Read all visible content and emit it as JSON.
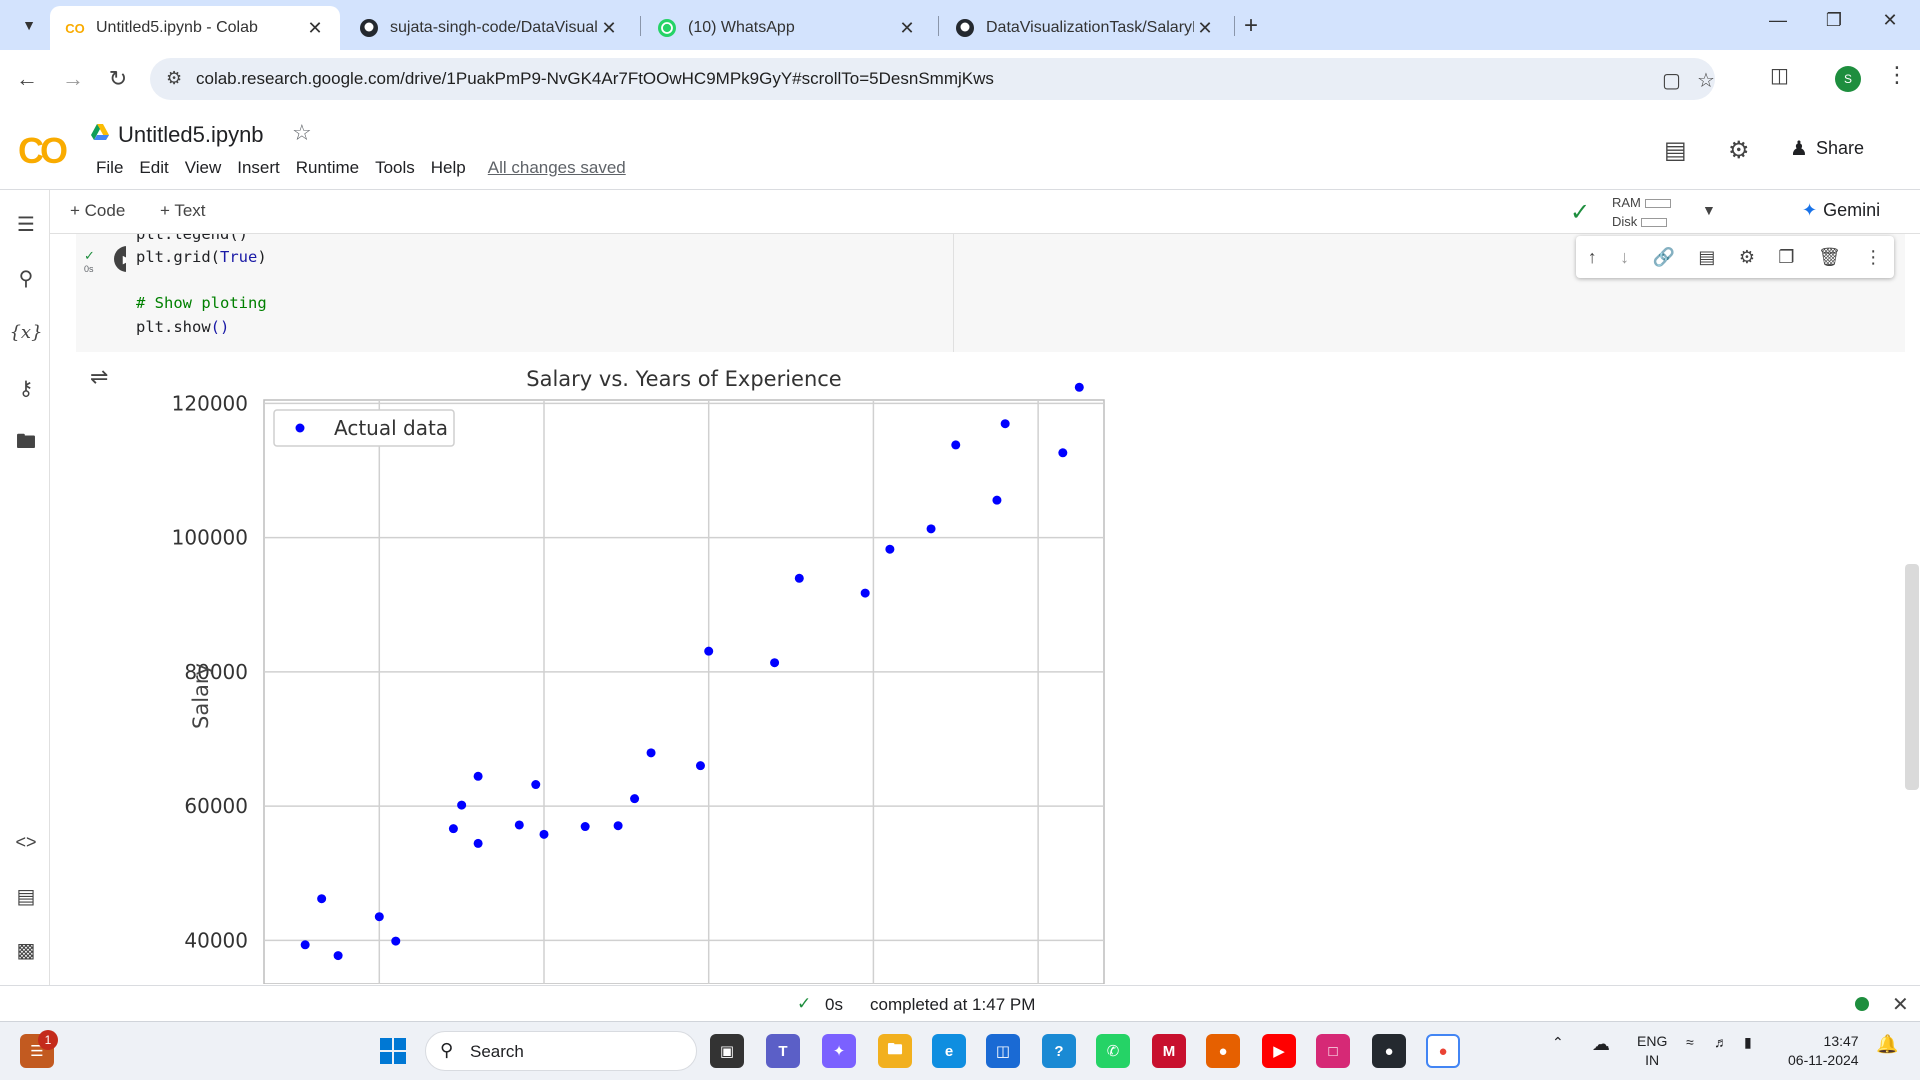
{
  "browser": {
    "tabs": [
      {
        "title": "Untitled5.ipynb - Colab",
        "icon": "colab-icon",
        "active": true
      },
      {
        "title": "sujata-singh-code/DataVisualiz",
        "icon": "github-icon",
        "active": false
      },
      {
        "title": "(10) WhatsApp",
        "icon": "whatsapp-icon",
        "active": false
      },
      {
        "title": "DataVisualizationTask/SalaryPre",
        "icon": "github-icon",
        "active": false
      }
    ],
    "url": "colab.research.google.com/drive/1PuakPmP9-NvGK4Ar7FtOOwHC9MPk9GyY#scrollTo=5DesnSmmjKws",
    "profile_initial": "S"
  },
  "colab": {
    "logo": "CO",
    "notebook_title": "Untitled5.ipynb",
    "menu": [
      "File",
      "Edit",
      "View",
      "Insert",
      "Runtime",
      "Tools",
      "Help"
    ],
    "save_status": "All changes saved",
    "share_label": "Share",
    "toolbar": {
      "add_code": "+ Code",
      "add_text": "+ Text",
      "ram": "RAM",
      "disk": "Disk",
      "gemini": "Gemini"
    }
  },
  "cell": {
    "exec_time": "0s",
    "code_lines": [
      {
        "text": "plt.legend()",
        "kind": "plain",
        "partial": true
      },
      {
        "text": "plt.grid(True)",
        "kind": "grid"
      },
      {
        "text": "",
        "kind": "plain"
      },
      {
        "text": "# Show ploting",
        "kind": "comment"
      },
      {
        "text": "plt.show()",
        "kind": "show"
      }
    ]
  },
  "chart_data": {
    "type": "scatter",
    "title": "Salary vs. Years of Experience",
    "ylabel": "Salary",
    "xlabel": "",
    "ylim": [
      33500,
      120500
    ],
    "xlim": [
      0.6,
      10.8
    ],
    "yticks": [
      40000,
      60000,
      80000,
      100000,
      120000
    ],
    "xgrid": [
      2,
      4,
      6,
      8,
      10
    ],
    "grid": true,
    "legend": {
      "position": "top-left",
      "entries": [
        "Actual data"
      ]
    },
    "series": [
      {
        "name": "Actual data",
        "color": "#0000ff",
        "points": [
          {
            "x": 1.1,
            "y": 39343
          },
          {
            "x": 1.3,
            "y": 46205
          },
          {
            "x": 1.5,
            "y": 37731
          },
          {
            "x": 2.0,
            "y": 43525
          },
          {
            "x": 2.2,
            "y": 39891
          },
          {
            "x": 2.9,
            "y": 56642
          },
          {
            "x": 3.0,
            "y": 60150
          },
          {
            "x": 3.2,
            "y": 54445
          },
          {
            "x": 3.2,
            "y": 64445
          },
          {
            "x": 3.7,
            "y": 57189
          },
          {
            "x": 3.9,
            "y": 63218
          },
          {
            "x": 4.0,
            "y": 55794
          },
          {
            "x": 4.5,
            "y": 56957
          },
          {
            "x": 4.9,
            "y": 57081
          },
          {
            "x": 5.1,
            "y": 61111
          },
          {
            "x": 5.3,
            "y": 67938
          },
          {
            "x": 5.9,
            "y": 66029
          },
          {
            "x": 6.0,
            "y": 83088
          },
          {
            "x": 6.8,
            "y": 81363
          },
          {
            "x": 7.1,
            "y": 93940
          },
          {
            "x": 7.9,
            "y": 91738
          },
          {
            "x": 8.2,
            "y": 98273
          },
          {
            "x": 8.7,
            "y": 101302
          },
          {
            "x": 9.0,
            "y": 113812
          },
          {
            "x": 9.5,
            "y": 105582
          },
          {
            "x": 9.6,
            "y": 116969
          },
          {
            "x": 10.3,
            "y": 112635
          },
          {
            "x": 10.5,
            "y": 122391
          }
        ]
      }
    ]
  },
  "status": {
    "time": "0s",
    "text": "completed at 1:47 PM"
  },
  "taskbar": {
    "search_label": "Search",
    "notification_count": "1",
    "lang_line1": "ENG",
    "lang_line2": "IN",
    "time": "13:47",
    "date": "06-11-2024"
  }
}
